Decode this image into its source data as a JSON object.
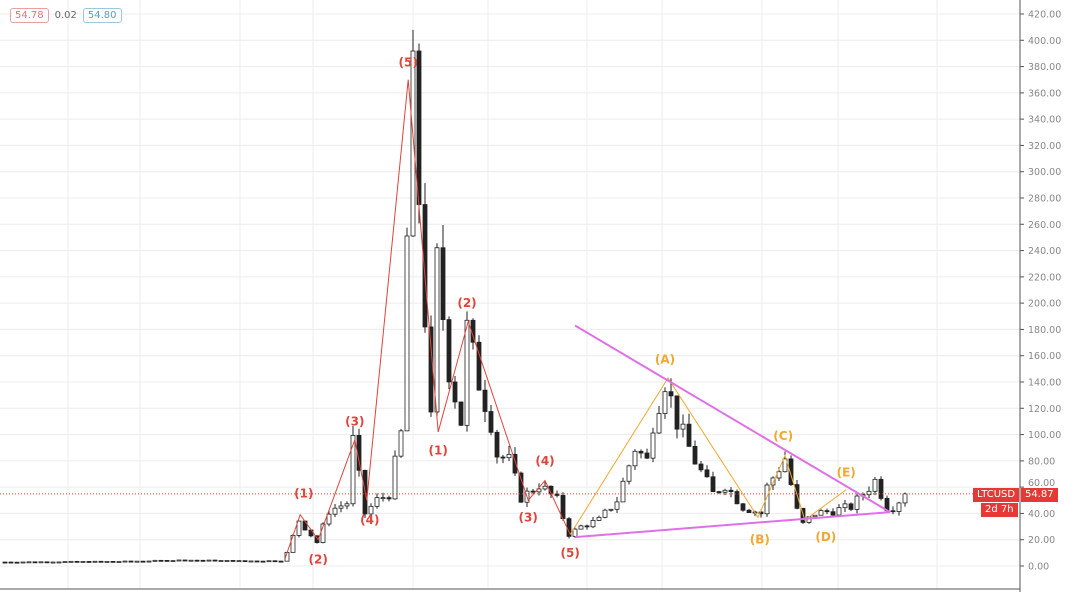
{
  "legend": {
    "value_1": "54.78",
    "change": "0.02",
    "value_2": "54.80"
  },
  "price_tag": {
    "symbol": "LTCUSD",
    "price": "54.87",
    "countdown": "2d 7h"
  },
  "colors": {
    "wave_red": "#e0443a",
    "wave_orange": "#f0a830",
    "triangle": "#e070e8",
    "price_line": "#e53935",
    "grid": "#ececec"
  },
  "chart_data": {
    "type": "candlestick",
    "symbol": "LTCUSD",
    "last_price": 54.87,
    "ylim": [
      0,
      420
    ],
    "y_ticks": [
      "0.00",
      "20.00",
      "40.00",
      "60.00",
      "80.00",
      "100.00",
      "120.00",
      "140.00",
      "160.00",
      "180.00",
      "200.00",
      "220.00",
      "240.00",
      "260.00",
      "280.00",
      "300.00",
      "320.00",
      "340.00",
      "360.00",
      "380.00",
      "400.00",
      "420.00"
    ],
    "grid": true,
    "price_anchors": [
      [
        0,
        3
      ],
      [
        20,
        3.5
      ],
      [
        30,
        4.5
      ],
      [
        40,
        3.8
      ],
      [
        46,
        4
      ],
      [
        47,
        10
      ],
      [
        49,
        35
      ],
      [
        52,
        18
      ],
      [
        54,
        42
      ],
      [
        57,
        48
      ],
      [
        58,
        95
      ],
      [
        60,
        40
      ],
      [
        62,
        50
      ],
      [
        64,
        55
      ],
      [
        66,
        100
      ],
      [
        67,
        250
      ],
      [
        68,
        365
      ],
      [
        69,
        280
      ],
      [
        70,
        190
      ],
      [
        71,
        110
      ],
      [
        72,
        230
      ],
      [
        74,
        150
      ],
      [
        76,
        110
      ],
      [
        77,
        180
      ],
      [
        79,
        140
      ],
      [
        81,
        110
      ],
      [
        82,
        85
      ],
      [
        84,
        80
      ],
      [
        86,
        52
      ],
      [
        87,
        55
      ],
      [
        89,
        62
      ],
      [
        92,
        50
      ],
      [
        94,
        24
      ],
      [
        96,
        30
      ],
      [
        99,
        35
      ],
      [
        102,
        50
      ],
      [
        105,
        90
      ],
      [
        107,
        80
      ],
      [
        108,
        110
      ],
      [
        110,
        142
      ],
      [
        112,
        110
      ],
      [
        114,
        90
      ],
      [
        115,
        80
      ],
      [
        118,
        55
      ],
      [
        120,
        62
      ],
      [
        123,
        45
      ],
      [
        126,
        40
      ],
      [
        127,
        60
      ],
      [
        130,
        82
      ],
      [
        132,
        42
      ],
      [
        133,
        32
      ],
      [
        135,
        40
      ],
      [
        138,
        42
      ],
      [
        141,
        45
      ],
      [
        143,
        55
      ],
      [
        145,
        65
      ],
      [
        147,
        45
      ],
      [
        148,
        45
      ],
      [
        150,
        55
      ]
    ],
    "wave_red": [
      [
        46.7,
        6
      ],
      [
        49.2,
        39
      ],
      [
        52.2,
        20
      ],
      [
        58.3,
        96
      ],
      [
        60.3,
        50
      ],
      [
        67.2,
        370
      ],
      [
        72.2,
        102
      ],
      [
        77.2,
        186
      ],
      [
        87.2,
        50
      ],
      [
        90,
        65
      ],
      [
        94.2,
        24
      ]
    ],
    "wave_orange": [
      [
        94.2,
        24
      ],
      [
        110.5,
        143
      ],
      [
        125.5,
        37
      ],
      [
        130,
        84
      ],
      [
        133.3,
        35
      ],
      [
        140.2,
        58
      ]
    ],
    "triangle_upper": [
      [
        95,
        183
      ],
      [
        147.5,
        41
      ]
    ],
    "triangle_lower": [
      [
        95,
        22
      ],
      [
        147.5,
        41
      ]
    ],
    "wave_labels": [
      {
        "text": "(1)",
        "bar": 49.8,
        "price": 55,
        "color": "red"
      },
      {
        "text": "(2)",
        "bar": 52.2,
        "price": 5,
        "color": "red"
      },
      {
        "text": "(3)",
        "bar": 58.3,
        "price": 110,
        "color": "red"
      },
      {
        "text": "(4)",
        "bar": 60.8,
        "price": 35,
        "color": "red"
      },
      {
        "text": "(5)",
        "bar": 67.2,
        "price": 383,
        "color": "red"
      },
      {
        "text": "(1)",
        "bar": 72.2,
        "price": 88,
        "color": "red"
      },
      {
        "text": "(2)",
        "bar": 77,
        "price": 200,
        "color": "red"
      },
      {
        "text": "(3)",
        "bar": 87.2,
        "price": 37,
        "color": "red"
      },
      {
        "text": "(4)",
        "bar": 90,
        "price": 80,
        "color": "red"
      },
      {
        "text": "(5)",
        "bar": 94.2,
        "price": 10,
        "color": "red"
      },
      {
        "text": "(A)",
        "bar": 110,
        "price": 157,
        "color": "orange"
      },
      {
        "text": "(B)",
        "bar": 125.8,
        "price": 20,
        "color": "orange"
      },
      {
        "text": "(C)",
        "bar": 129.7,
        "price": 99,
        "color": "orange"
      },
      {
        "text": "(D)",
        "bar": 136.8,
        "price": 22,
        "color": "orange"
      },
      {
        "text": "(E)",
        "bar": 140.2,
        "price": 71,
        "color": "orange"
      }
    ]
  }
}
